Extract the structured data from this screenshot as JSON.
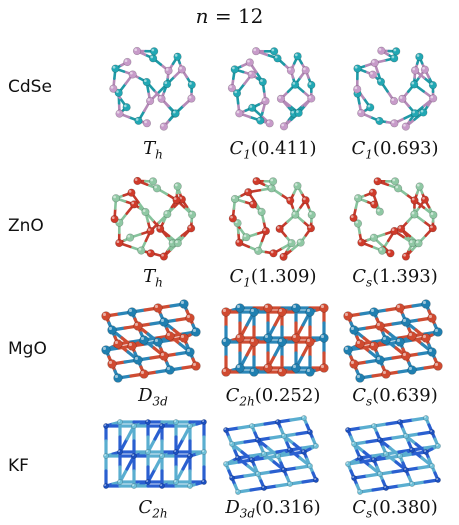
{
  "title": "n = 12",
  "rows": [
    {
      "label": "CdSe",
      "colors": {
        "a": "#c79bc9",
        "b": "#22a8b4",
        "bond_a": "#b58ab8",
        "bond_b": "#1e9aa6"
      },
      "structures": [
        {
          "caption": "T_h",
          "style": "cage"
        },
        {
          "caption": "C_1(0.411)",
          "style": "cage"
        },
        {
          "caption": "C_1(0.693)",
          "style": "cage"
        }
      ]
    },
    {
      "label": "ZnO",
      "colors": {
        "a": "#cf3a2a",
        "b": "#8fc8a4",
        "bond_a": "#c53a2c",
        "bond_b": "#86c39c"
      },
      "structures": [
        {
          "caption": "T_h",
          "style": "cage"
        },
        {
          "caption": "C_1(1.309)",
          "style": "cage"
        },
        {
          "caption": "C_s(1.393)",
          "style": "cage"
        }
      ]
    },
    {
      "label": "MgO",
      "colors": {
        "a": "#d04a30",
        "b": "#1f7fb0",
        "bond_a": "#cf4c33",
        "bond_b": "#2a86b8"
      },
      "structures": [
        {
          "caption": "D_3d",
          "style": "rock"
        },
        {
          "caption": "C_2h(0.252)",
          "style": "box"
        },
        {
          "caption": "C_s(0.639)",
          "style": "rock"
        }
      ]
    },
    {
      "label": "KF",
      "colors": {
        "a": "#1c4fbf",
        "b": "#6fc0d8",
        "bond_a": "#2a5fd0",
        "bond_b": "#5aaed0"
      },
      "structures": [
        {
          "caption": "C_2h",
          "style": "box"
        },
        {
          "caption": "D_3d(0.316)",
          "style": "rock"
        },
        {
          "caption": "C_s(0.380)",
          "style": "rock"
        }
      ]
    }
  ]
}
